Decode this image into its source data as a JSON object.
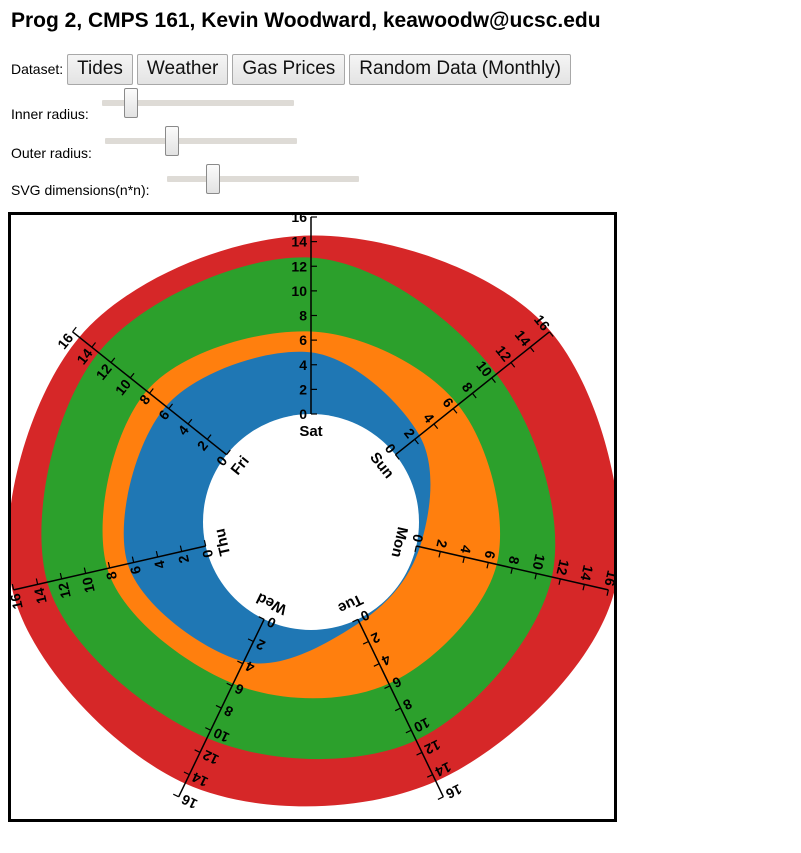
{
  "header": {
    "title": "Prog 2, CMPS 161, Kevin Woodward, keawoodw@ucsc.edu"
  },
  "dataset": {
    "label": "Dataset:",
    "buttons": [
      "Tides",
      "Weather",
      "Gas Prices",
      "Random Data (Monthly)"
    ]
  },
  "sliders": {
    "inner": {
      "label": "Inner radius:",
      "level": 0.15
    },
    "outer": {
      "label": "Outer radius:",
      "level": 0.35
    },
    "svg": {
      "label": "SVG dimensions(n*n):",
      "level": 0.24
    }
  },
  "chart_data": {
    "type": "radial-stacked-area",
    "categories": [
      "Sat",
      "Sun",
      "Mon",
      "Tue",
      "Wed",
      "Thu",
      "Fri"
    ],
    "axis_range": [
      0,
      16
    ],
    "ticks": [
      0,
      2,
      4,
      6,
      8,
      10,
      12,
      14,
      16
    ],
    "series": [
      {
        "color": "#1f77b4",
        "values": [
          5,
          2.5,
          0.3,
          0.3,
          3.8,
          6.5,
          6.3
        ]
      },
      {
        "color": "#ff7f0e",
        "values": [
          6.7,
          6.5,
          6.7,
          5.8,
          5.8,
          8.2,
          8.3
        ]
      },
      {
        "color": "#2ca02c",
        "values": [
          12.7,
          10.5,
          11.3,
          10.9,
          10.7,
          13.2,
          13.3
        ]
      },
      {
        "color": "#d62728",
        "values": [
          14.5,
          16.1,
          16.5,
          14.6,
          14.8,
          16.1,
          15.3
        ]
      }
    ]
  }
}
